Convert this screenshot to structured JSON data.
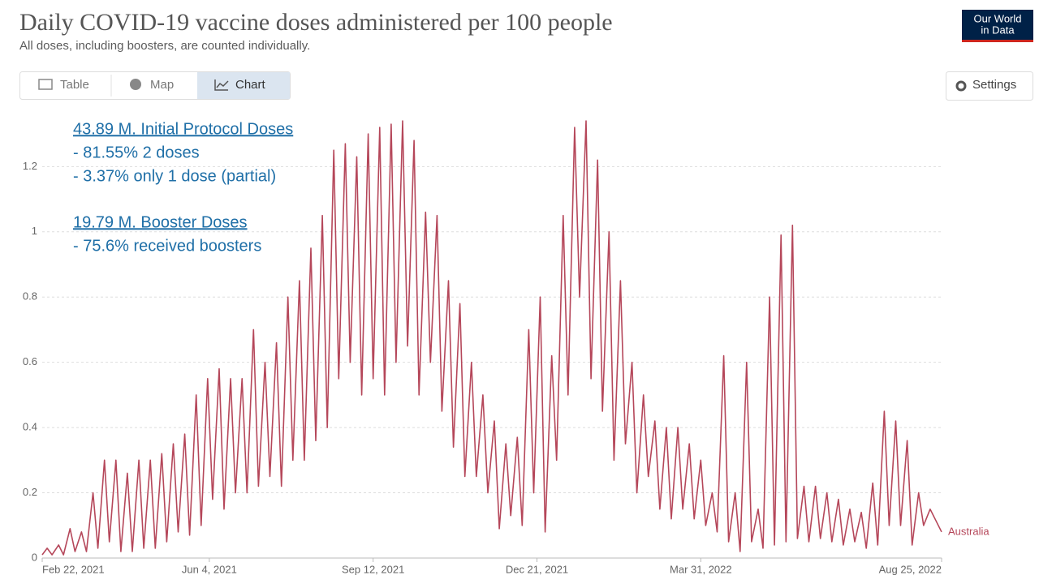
{
  "chart_data": {
    "type": "line",
    "title": "Daily COVID-19 vaccine doses administered per 100 people",
    "subtitle": "All doses, including boosters, are counted individually.",
    "tabs": [
      "Table",
      "Map",
      "Chart"
    ],
    "settings_label": "Settings",
    "logo": [
      "Our World",
      "in Data"
    ],
    "annotations": [
      "43.89 M. Initial Protocol Doses",
      "- 81.55% 2 doses",
      "- 3.37% only 1 dose (partial)",
      "19.79 M. Booster Doses",
      "- 75.6% received boosters"
    ],
    "xlim": [
      "2021-02-22",
      "2022-08-25"
    ],
    "xticks": [
      {
        "value": "2021-02-22",
        "label": "Feb 22, 2021"
      },
      {
        "value": "2021-06-04",
        "label": "Jun 4, 2021"
      },
      {
        "value": "2021-09-12",
        "label": "Sep 12, 2021"
      },
      {
        "value": "2021-12-21",
        "label": "Dec 21, 2021"
      },
      {
        "value": "2022-03-31",
        "label": "Mar 31, 2022"
      },
      {
        "value": "2022-08-25",
        "label": "Aug 25, 2022"
      }
    ],
    "ylim": [
      0,
      1.35
    ],
    "yticks": [
      0,
      0.2,
      0.4,
      0.6,
      0.8,
      1,
      1.2
    ],
    "grid": true,
    "x": [
      "2021-02-22",
      "2021-02-25",
      "2021-02-28",
      "2021-03-04",
      "2021-03-07",
      "2021-03-11",
      "2021-03-14",
      "2021-03-18",
      "2021-03-21",
      "2021-03-25",
      "2021-03-28",
      "2021-04-01",
      "2021-04-04",
      "2021-04-08",
      "2021-04-11",
      "2021-04-15",
      "2021-04-18",
      "2021-04-22",
      "2021-04-25",
      "2021-04-29",
      "2021-05-02",
      "2021-05-06",
      "2021-05-09",
      "2021-05-13",
      "2021-05-16",
      "2021-05-20",
      "2021-05-23",
      "2021-05-27",
      "2021-05-30",
      "2021-06-03",
      "2021-06-06",
      "2021-06-10",
      "2021-06-13",
      "2021-06-17",
      "2021-06-20",
      "2021-06-24",
      "2021-06-27",
      "2021-07-01",
      "2021-07-04",
      "2021-07-08",
      "2021-07-11",
      "2021-07-15",
      "2021-07-18",
      "2021-07-22",
      "2021-07-25",
      "2021-07-29",
      "2021-08-01",
      "2021-08-05",
      "2021-08-08",
      "2021-08-12",
      "2021-08-15",
      "2021-08-19",
      "2021-08-22",
      "2021-08-26",
      "2021-08-29",
      "2021-09-02",
      "2021-09-05",
      "2021-09-09",
      "2021-09-12",
      "2021-09-16",
      "2021-09-19",
      "2021-09-23",
      "2021-09-26",
      "2021-09-30",
      "2021-10-03",
      "2021-10-07",
      "2021-10-10",
      "2021-10-14",
      "2021-10-17",
      "2021-10-21",
      "2021-10-24",
      "2021-10-28",
      "2021-10-31",
      "2021-11-04",
      "2021-11-07",
      "2021-11-11",
      "2021-11-14",
      "2021-11-18",
      "2021-11-21",
      "2021-11-25",
      "2021-11-28",
      "2021-12-02",
      "2021-12-05",
      "2021-12-09",
      "2021-12-12",
      "2021-12-16",
      "2021-12-19",
      "2021-12-23",
      "2021-12-26",
      "2021-12-30",
      "2022-01-02",
      "2022-01-06",
      "2022-01-09",
      "2022-01-13",
      "2022-01-16",
      "2022-01-20",
      "2022-01-23",
      "2022-01-27",
      "2022-01-30",
      "2022-02-03",
      "2022-02-06",
      "2022-02-10",
      "2022-02-13",
      "2022-02-17",
      "2022-02-20",
      "2022-02-24",
      "2022-02-27",
      "2022-03-03",
      "2022-03-06",
      "2022-03-10",
      "2022-03-13",
      "2022-03-17",
      "2022-03-20",
      "2022-03-24",
      "2022-03-27",
      "2022-03-31",
      "2022-04-03",
      "2022-04-07",
      "2022-04-10",
      "2022-04-14",
      "2022-04-17",
      "2022-04-21",
      "2022-04-24",
      "2022-04-28",
      "2022-05-01",
      "2022-05-05",
      "2022-05-08",
      "2022-05-12",
      "2022-05-15",
      "2022-05-19",
      "2022-05-22",
      "2022-05-26",
      "2022-05-29",
      "2022-06-02",
      "2022-06-05",
      "2022-06-09",
      "2022-06-12",
      "2022-06-16",
      "2022-06-19",
      "2022-06-23",
      "2022-06-26",
      "2022-06-30",
      "2022-07-03",
      "2022-07-07",
      "2022-07-10",
      "2022-07-14",
      "2022-07-17",
      "2022-07-21",
      "2022-07-24",
      "2022-07-28",
      "2022-07-31",
      "2022-08-04",
      "2022-08-07",
      "2022-08-11",
      "2022-08-14",
      "2022-08-18",
      "2022-08-21",
      "2022-08-25"
    ],
    "series": [
      {
        "name": "Australia",
        "color": "#b5475a",
        "values": [
          0.01,
          0.03,
          0.01,
          0.04,
          0.01,
          0.09,
          0.02,
          0.08,
          0.02,
          0.2,
          0.03,
          0.3,
          0.05,
          0.3,
          0.02,
          0.26,
          0.02,
          0.3,
          0.03,
          0.3,
          0.03,
          0.32,
          0.05,
          0.35,
          0.08,
          0.38,
          0.07,
          0.5,
          0.1,
          0.55,
          0.18,
          0.58,
          0.15,
          0.55,
          0.2,
          0.55,
          0.2,
          0.7,
          0.22,
          0.6,
          0.25,
          0.66,
          0.22,
          0.8,
          0.3,
          0.85,
          0.3,
          0.95,
          0.36,
          1.05,
          0.4,
          1.25,
          0.55,
          1.27,
          0.6,
          1.23,
          0.5,
          1.3,
          0.55,
          1.32,
          0.5,
          1.33,
          0.6,
          1.34,
          0.65,
          1.28,
          0.5,
          1.06,
          0.6,
          1.05,
          0.45,
          0.85,
          0.34,
          0.78,
          0.25,
          0.6,
          0.25,
          0.5,
          0.2,
          0.42,
          0.09,
          0.35,
          0.13,
          0.37,
          0.1,
          0.7,
          0.2,
          0.8,
          0.08,
          0.62,
          0.3,
          1.05,
          0.5,
          1.32,
          0.8,
          1.34,
          0.55,
          1.22,
          0.45,
          1.0,
          0.3,
          0.85,
          0.35,
          0.6,
          0.2,
          0.5,
          0.25,
          0.42,
          0.15,
          0.4,
          0.12,
          0.4,
          0.15,
          0.35,
          0.12,
          0.3,
          0.1,
          0.2,
          0.08,
          0.62,
          0.05,
          0.2,
          0.02,
          0.6,
          0.05,
          0.15,
          0.03,
          0.8,
          0.04,
          0.99,
          0.05,
          1.02,
          0.06,
          0.22,
          0.05,
          0.22,
          0.06,
          0.2,
          0.05,
          0.18,
          0.04,
          0.15,
          0.05,
          0.14,
          0.03,
          0.23,
          0.04,
          0.45,
          0.1,
          0.42,
          0.1,
          0.36,
          0.04,
          0.2,
          0.1,
          0.15,
          0.12,
          0.08
        ]
      }
    ]
  }
}
